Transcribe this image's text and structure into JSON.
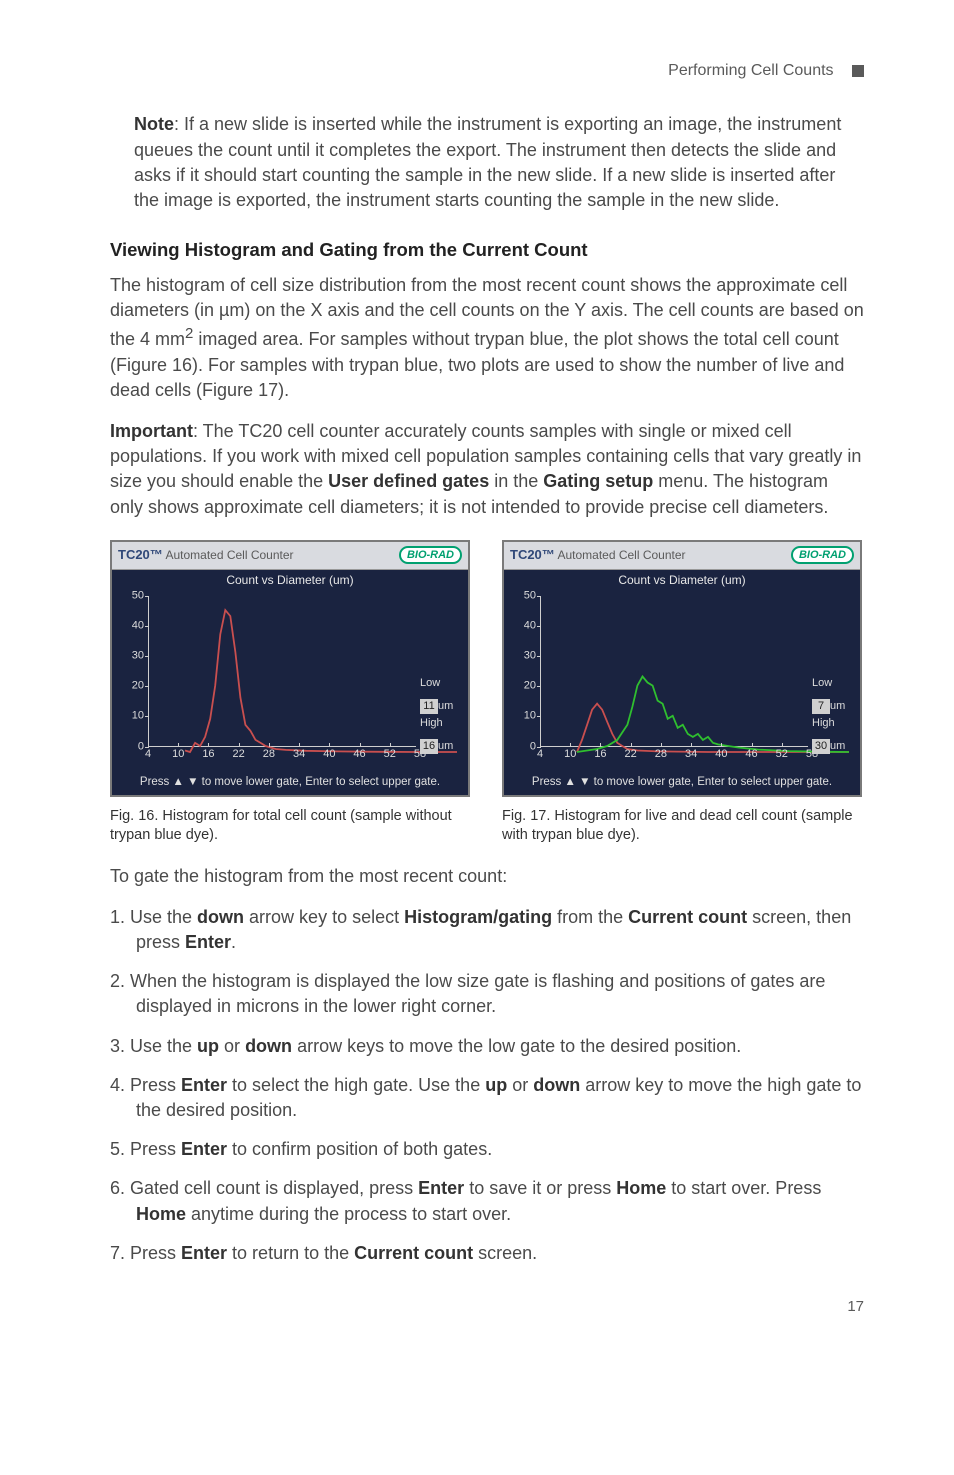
{
  "header": {
    "section": "Performing Cell Counts"
  },
  "note": {
    "label": "Note",
    "text": ": If a new slide is inserted while the instrument is exporting an image, the instrument queues the count until it completes the export. The instrument then detects the slide and asks if it should start counting the sample in the new slide. If a new slide is inserted after the image is exported, the instrument starts counting the sample in the new slide."
  },
  "section_heading": "Viewing Histogram and Gating from the Current Count",
  "para1": "The histogram of cell size distribution from the most recent count shows the approximate cell diameters (in µm) on the X axis and the cell counts on the Y axis. The cell counts are based on the 4 mm",
  "para1_sup": "2",
  "para1_cont": " imaged area. For samples without trypan blue, the plot shows the total cell count (Figure 16). For samples with trypan blue, two plots are used to show the number of live and dead cells (Figure 17).",
  "important": {
    "label": "Important",
    "text": ": The TC20 cell counter accurately counts samples with single or mixed cell populations. If you work with mixed cell population samples containing cells that vary greatly in size you should enable the ",
    "b1": "User defined gates",
    "mid": " in the ",
    "b2": "Gating setup",
    "tail": " menu. The histogram only shows approximate cell diameters; it is not intended to provide precise cell diameters."
  },
  "chart_common": {
    "titlebar_brand": "TC20™",
    "titlebar_sub": " Automated Cell Counter",
    "logo": "BIO-RAD",
    "subtitle": "Count vs Diameter (um)",
    "footer": "Press ▲ ▼ to move lower gate, Enter to select upper gate.",
    "yticks": [
      0,
      10,
      20,
      30,
      40,
      50
    ],
    "xticks": [
      4,
      10,
      16,
      22,
      28,
      34,
      40,
      46,
      52,
      58
    ],
    "xmin": 4,
    "xmax": 58,
    "ymin": 0,
    "ymax": 50,
    "low_label": "Low",
    "high_label": "High",
    "unit": "um",
    "bg_color": "#1a2340",
    "titlebar_bg": "#d9dbe0",
    "axis_color": "#cfcfcf",
    "text_color": "#dcdcdc"
  },
  "chart16": {
    "low_val": "11",
    "high_val": "16",
    "series": [
      {
        "color": "#c94f4f",
        "width": 1.8,
        "points": [
          [
            4,
            0.5
          ],
          [
            5,
            0
          ],
          [
            6,
            3
          ],
          [
            7,
            2
          ],
          [
            8,
            5
          ],
          [
            9,
            11
          ],
          [
            10,
            22
          ],
          [
            11,
            39
          ],
          [
            12,
            47
          ],
          [
            13,
            45
          ],
          [
            14,
            33
          ],
          [
            15,
            18
          ],
          [
            16,
            9
          ],
          [
            17,
            7
          ],
          [
            18,
            4
          ],
          [
            19,
            3
          ],
          [
            20,
            2
          ],
          [
            21,
            1.5
          ],
          [
            22,
            1
          ],
          [
            24,
            0.7
          ],
          [
            28,
            0.4
          ],
          [
            34,
            0.2
          ],
          [
            40,
            0.1
          ],
          [
            50,
            0
          ],
          [
            58,
            0
          ]
        ]
      }
    ]
  },
  "chart17": {
    "low_val": "7",
    "high_val": "30",
    "series": [
      {
        "color": "#c94f4f",
        "width": 1.8,
        "points": [
          [
            4,
            0
          ],
          [
            5,
            4
          ],
          [
            6,
            9
          ],
          [
            7,
            14
          ],
          [
            8,
            16
          ],
          [
            9,
            14
          ],
          [
            10,
            10
          ],
          [
            11,
            6
          ],
          [
            12,
            3
          ],
          [
            13,
            2
          ],
          [
            14,
            1
          ],
          [
            16,
            0.5
          ],
          [
            20,
            0.2
          ],
          [
            30,
            0
          ],
          [
            58,
            0
          ]
        ]
      },
      {
        "color": "#2fbf2f",
        "width": 1.8,
        "points": [
          [
            4,
            0
          ],
          [
            6,
            0.5
          ],
          [
            8,
            1
          ],
          [
            10,
            2
          ],
          [
            12,
            4
          ],
          [
            14,
            9
          ],
          [
            15,
            15
          ],
          [
            16,
            22
          ],
          [
            17,
            25
          ],
          [
            18,
            23
          ],
          [
            19,
            22
          ],
          [
            20,
            17
          ],
          [
            21,
            16
          ],
          [
            22,
            11
          ],
          [
            23,
            12
          ],
          [
            24,
            8
          ],
          [
            25,
            9
          ],
          [
            26,
            6
          ],
          [
            27,
            5
          ],
          [
            28,
            6
          ],
          [
            29,
            4
          ],
          [
            30,
            5
          ],
          [
            31,
            3
          ],
          [
            32,
            2.5
          ],
          [
            34,
            2
          ],
          [
            36,
            1.5
          ],
          [
            40,
            0.8
          ],
          [
            46,
            0.3
          ],
          [
            52,
            0.1
          ],
          [
            58,
            0
          ]
        ]
      }
    ]
  },
  "fig16_cap": "Fig. 16. Histogram for total cell count (sample without trypan blue dye).",
  "fig17_cap": "Fig. 17. Histogram for live and dead cell count (sample with trypan blue dye).",
  "gate_intro": "To gate the histogram from the most recent count:",
  "steps": {
    "s1a": "1. Use the ",
    "s1b": "down",
    "s1c": " arrow key to select ",
    "s1d": "Histogram/gating",
    "s1e": " from the ",
    "s1f": "Current count",
    "s1g": " screen, then press ",
    "s1h": "Enter",
    "s1i": ".",
    "s2a": "2. When the histogram is displayed the low size gate is flashing and positions of gates are displayed in microns in the lower right corner.",
    "s3a": "3. Use the ",
    "s3b": "up",
    "s3c": " or ",
    "s3d": "down",
    "s3e": " arrow keys to move the low gate to the desired position.",
    "s4a": "4. Press ",
    "s4b": "Enter",
    "s4c": " to select the high gate. Use the ",
    "s4d": "up",
    "s4e": " or ",
    "s4f": "down",
    "s4g": " arrow key to move the high gate to the desired position.",
    "s5a": "5. Press ",
    "s5b": "Enter",
    "s5c": " to confirm position of both gates.",
    "s6a": "6. Gated cell count is displayed, press ",
    "s6b": "Enter",
    "s6c": " to save it or press ",
    "s6d": "Home",
    "s6e": " to start over. Press ",
    "s6f": "Home",
    "s6g": " anytime during the process to start over.",
    "s7a": "7. Press ",
    "s7b": "Enter",
    "s7c": " to return to the ",
    "s7d": "Current count",
    "s7e": " screen."
  },
  "page_number": "17"
}
